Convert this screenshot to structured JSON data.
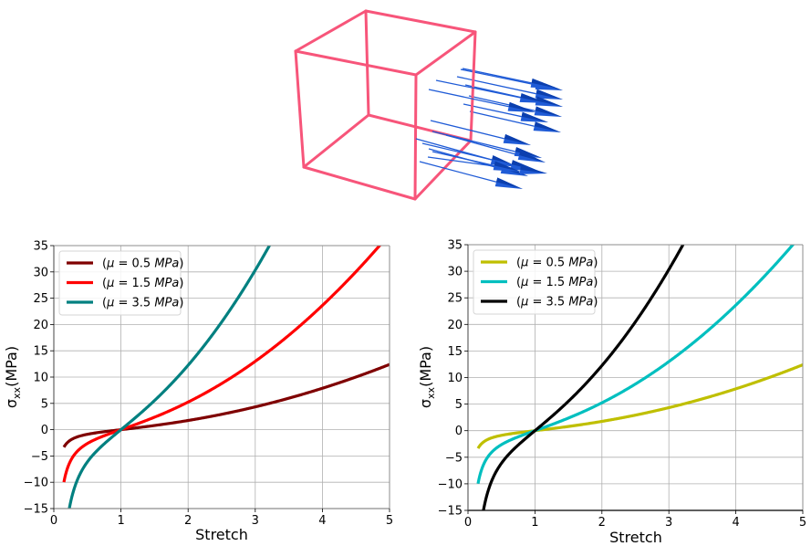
{
  "illustration": {
    "description": "3D wireframe cube with blue traction arrows pointing in +x direction from one face",
    "cube_color": "#f7557a",
    "arrow_color": "#1f5bd6",
    "arrow_count": 18
  },
  "chart_data": [
    {
      "type": "line",
      "title": "",
      "xlabel": "Stretch",
      "ylabel": "σxx(MPa)",
      "ylabel_main": "σ",
      "ylabel_sub": "xx",
      "ylabel_unit": "(MPa)",
      "xlim": [
        0,
        5
      ],
      "ylim": [
        -15,
        35
      ],
      "xticks": [
        "0",
        "1",
        "2",
        "3",
        "4",
        "5"
      ],
      "yticks": [
        "−15",
        "−10",
        "−5",
        "0",
        "5",
        "10",
        "15",
        "20",
        "25",
        "30",
        "35"
      ],
      "grid": true,
      "legend_position": "top-left",
      "model": "sigma = mu * (lambda^2 - 1/lambda)",
      "series": [
        {
          "name": "(μ = 0.5 MPa)",
          "mu": 0.5,
          "color": "#7f0000",
          "x_start": 0.15,
          "x": [
            0.15,
            0.5,
            1,
            2,
            3,
            4,
            5
          ],
          "y": [
            -3.32,
            -0.88,
            0,
            1.75,
            4.33,
            7.88,
            12.4
          ]
        },
        {
          "name": "(μ = 1.5 MPa)",
          "mu": 1.5,
          "color": "#ff0000",
          "x_start": 0.15,
          "x": [
            0.15,
            0.5,
            1,
            2,
            3,
            4,
            4.85
          ],
          "y": [
            -9.97,
            -2.63,
            0,
            5.25,
            13.0,
            23.6,
            35.0
          ]
        },
        {
          "name": "(μ = 3.5 MPa)",
          "mu": 3.5,
          "color": "#008080",
          "x_start": 0.22,
          "x": [
            0.22,
            0.5,
            1,
            2,
            3.22
          ],
          "y": [
            -15.7,
            -6.13,
            0,
            12.25,
            35.0
          ]
        }
      ]
    },
    {
      "type": "line",
      "title": "",
      "xlabel": "Stretch",
      "ylabel": "σxx(MPa)",
      "ylabel_main": "σ",
      "ylabel_sub": "xx",
      "ylabel_unit": "(MPa)",
      "xlim": [
        0,
        5
      ],
      "ylim": [
        -15,
        35
      ],
      "xticks": [
        "0",
        "1",
        "2",
        "3",
        "4",
        "5"
      ],
      "yticks": [
        "−15",
        "−10",
        "−5",
        "0",
        "5",
        "10",
        "15",
        "20",
        "25",
        "30",
        "35"
      ],
      "grid": true,
      "legend_position": "top-left",
      "model": "sigma = mu * (lambda^2 - 1/lambda)",
      "series": [
        {
          "name": "(μ = 0.5 MPa)",
          "mu": 0.5,
          "color": "#bfbf00",
          "x_start": 0.15,
          "x": [
            0.15,
            0.5,
            1,
            2,
            3,
            4,
            5
          ],
          "y": [
            -3.32,
            -0.88,
            0,
            1.75,
            4.33,
            7.88,
            12.4
          ]
        },
        {
          "name": "(μ = 1.5 MPa)",
          "mu": 1.5,
          "color": "#00bfbf",
          "x_start": 0.15,
          "x": [
            0.15,
            0.5,
            1,
            2,
            3,
            4,
            4.85
          ],
          "y": [
            -9.97,
            -2.63,
            0,
            5.25,
            13.0,
            23.6,
            35.0
          ]
        },
        {
          "name": "(μ = 3.5 MPa)",
          "mu": 3.5,
          "color": "#000000",
          "x_start": 0.22,
          "x": [
            0.22,
            0.5,
            1,
            2,
            3.22
          ],
          "y": [
            -15.7,
            -6.13,
            0,
            12.25,
            35.0
          ]
        }
      ]
    }
  ]
}
